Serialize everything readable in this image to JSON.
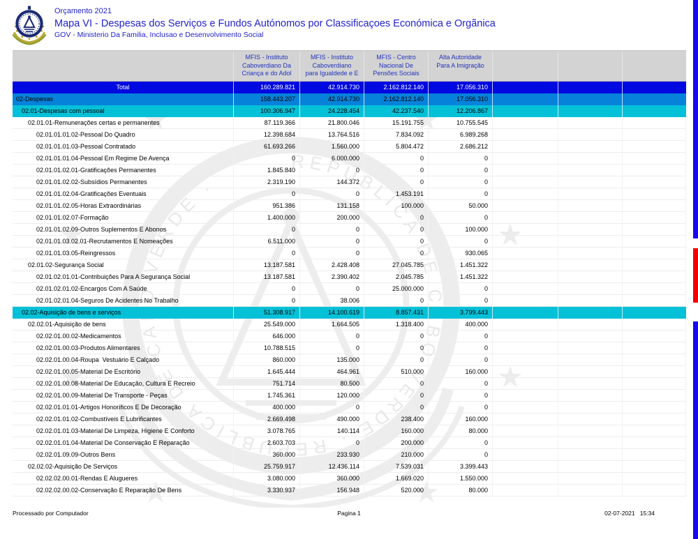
{
  "header": {
    "line_top": "Orçamento 2021",
    "title": "Mapa VI - Despesas dos Serviços e Fundos Autónomos por Classificaçoes Económica e Orgãnica",
    "line_bottom": "GOV - Ministerio Da Familia, Inclusao e Desenvolvimento Social"
  },
  "table": {
    "columns": [
      {
        "lines": []
      },
      {
        "lines": [
          "MFIS - Instituto",
          "Caboverdiano Da",
          "Criança e do Adol"
        ]
      },
      {
        "lines": [
          "MFIS - Instituto",
          "Caboverdiano",
          "para Igualdede e E"
        ]
      },
      {
        "lines": [
          "MFIS - Centro",
          "Nacional De",
          "Pensões Sociais"
        ]
      },
      {
        "lines": [
          "Alta Autoridade",
          "Para A Imigração"
        ]
      },
      {
        "lines": []
      },
      {
        "lines": []
      },
      {
        "lines": []
      }
    ],
    "rows": [
      {
        "label": "Total",
        "type": "total",
        "level": 0,
        "values": [
          "160.289.821",
          "42.914.730",
          "2.162.812.140",
          "17.056.310"
        ]
      },
      {
        "label": "02-Despesas",
        "type": "blue",
        "level": 1,
        "values": [
          "158.443.207",
          "42.914.730",
          "2.162.812.140",
          "17.056.310"
        ]
      },
      {
        "label": "02.01-Despesas com pessoal",
        "type": "cyan",
        "level": 2,
        "values": [
          "100.306.947",
          "24.228.454",
          "42.237.540",
          "12.206.867"
        ]
      },
      {
        "label": "02.01.01-Remunerações certas e permanentes",
        "type": "white",
        "level": 3,
        "values": [
          "87.119.366",
          "21.800.046",
          "15.191.755",
          "10.755.545"
        ]
      },
      {
        "label": "02.01.01.01.02-Pessoal Do Quadro",
        "type": "white",
        "level": 4,
        "values": [
          "12.398.684",
          "13.764.516",
          "7.834.092",
          "6.989.268"
        ]
      },
      {
        "label": "02.01.01.01.03-Pessoal Contratado",
        "type": "white",
        "level": 4,
        "values": [
          "61.693.266",
          "1.560.000",
          "5.804.472",
          "2.686.212"
        ]
      },
      {
        "label": "02.01.01.01.04-Pessoal Em Regime De Avença",
        "type": "white",
        "level": 4,
        "values": [
          "0",
          "6.000.000",
          "0",
          "0"
        ]
      },
      {
        "label": "02.01.01.02.01-Gratificações Permanentes",
        "type": "white",
        "level": 4,
        "values": [
          "1.845.840",
          "0",
          "0",
          "0"
        ]
      },
      {
        "label": "02.01.01.02.02-Subsídios Permanentes",
        "type": "white",
        "level": 4,
        "values": [
          "2.319.190",
          "144.372",
          "0",
          "0"
        ]
      },
      {
        "label": "02.01.01.02.04-Gratificações Eventuais",
        "type": "white",
        "level": 4,
        "values": [
          "0",
          "0",
          "1.453.191",
          "0"
        ]
      },
      {
        "label": "02.01.01.02.05-Horas Extraordinárias",
        "type": "white",
        "level": 4,
        "values": [
          "951.386",
          "131.158",
          "100.000",
          "50.000"
        ]
      },
      {
        "label": "02.01.01.02.07-Formação",
        "type": "white",
        "level": 4,
        "values": [
          "1.400.000",
          "200.000",
          "0",
          "0"
        ]
      },
      {
        "label": "02.01.01.02.09-Outros Suplementos E Abonos",
        "type": "white",
        "level": 4,
        "values": [
          "0",
          "0",
          "0",
          "100.000"
        ]
      },
      {
        "label": "02.01.01.03.02.01-Recrutamentos E Nomeações",
        "type": "white",
        "level": 4,
        "values": [
          "6.511.000",
          "0",
          "0",
          "0"
        ]
      },
      {
        "label": "02.01.01.03.05-Reingressos",
        "type": "white",
        "level": 4,
        "values": [
          "0",
          "0",
          "0",
          "930.065"
        ]
      },
      {
        "label": "02.01.02-Segurança Social",
        "type": "white",
        "level": 3,
        "values": [
          "13.187.581",
          "2.428.408",
          "27.045.785",
          "1.451.322"
        ]
      },
      {
        "label": "02.01.02.01.01-Contribuições Para A Segurança Social",
        "type": "white",
        "level": 4,
        "values": [
          "13.187.581",
          "2.390.402",
          "2.045.785",
          "1.451.322"
        ]
      },
      {
        "label": "02.01.02.01.02-Encargos Com A Saúde",
        "type": "white",
        "level": 4,
        "values": [
          "0",
          "0",
          "25.000.000",
          "0"
        ]
      },
      {
        "label": "02.01.02.01.04-Seguros De Acidentes No Trabalho",
        "type": "white",
        "level": 4,
        "values": [
          "0",
          "38.006",
          "0",
          "0"
        ]
      },
      {
        "label": "02.02-Aquisição de bens e serviços",
        "type": "cyan",
        "level": 2,
        "values": [
          "51.308.917",
          "14.100.619",
          "8.857.431",
          "3.799.443"
        ]
      },
      {
        "label": "02.02.01-Aquisição de bens",
        "type": "white",
        "level": 3,
        "values": [
          "25.549.000",
          "1.664.505",
          "1.318.400",
          "400.000"
        ]
      },
      {
        "label": "02.02.01.00.02-Medicamentos",
        "type": "white",
        "level": 4,
        "values": [
          "646.000",
          "0",
          "0",
          "0"
        ]
      },
      {
        "label": "02.02.01.00.03-Produtos Alimentares",
        "type": "white",
        "level": 4,
        "values": [
          "10.788.515",
          "0",
          "0",
          "0"
        ]
      },
      {
        "label": "02.02.01.00.04-Roupa  Vestuário E Calçado",
        "type": "white",
        "level": 4,
        "values": [
          "860.000",
          "135.000",
          "0",
          "0"
        ]
      },
      {
        "label": "02.02.01.00.05-Material De Escritório",
        "type": "white",
        "level": 4,
        "values": [
          "1.645.444",
          "464.961",
          "510.000",
          "160.000"
        ]
      },
      {
        "label": "02.02.01.00.08-Material De Educação, Cultura E Recreio",
        "type": "white",
        "level": 4,
        "values": [
          "751.714",
          "80.500",
          "0",
          "0"
        ]
      },
      {
        "label": "02.02.01.00.09-Material De Transporte - Peças",
        "type": "white",
        "level": 4,
        "values": [
          "1.745.361",
          "120.000",
          "0",
          "0"
        ]
      },
      {
        "label": "02.02.01.01.01-Artigos Honoríficos E De Decoração",
        "type": "white",
        "level": 4,
        "values": [
          "400.000",
          "0",
          "0",
          "0"
        ]
      },
      {
        "label": "02.02.01.01.02-Combustíveis E Lubrificantes",
        "type": "white",
        "level": 4,
        "values": [
          "2.669.498",
          "490.000",
          "238.400",
          "160.000"
        ]
      },
      {
        "label": "02.02.01.01.03-Material De Limpeza, Higiene E Conforto",
        "type": "white",
        "level": 4,
        "values": [
          "3.078.765",
          "140.114",
          "160.000",
          "80.000"
        ]
      },
      {
        "label": "02.02.01.01.04-Material De Conservação E Reparação",
        "type": "white",
        "level": 4,
        "values": [
          "2.603.703",
          "0",
          "200.000",
          "0"
        ]
      },
      {
        "label": "02.02.01.09.09-Outros Bens",
        "type": "white",
        "level": 4,
        "values": [
          "360.000",
          "233.930",
          "210.000",
          "0"
        ]
      },
      {
        "label": "02.02.02-Aquisição De Serviços",
        "type": "white",
        "level": 3,
        "values": [
          "25.759.917",
          "12.436.114",
          "7.539.031",
          "3.399.443"
        ]
      },
      {
        "label": "02.02.02.00.01-Rendas E Alugueres",
        "type": "white",
        "level": 4,
        "values": [
          "3.080.000",
          "360.000",
          "1.669.020",
          "1.550.000"
        ]
      },
      {
        "label": "02.02.02.00.02-Conservação E Reparação De Bens",
        "type": "white",
        "level": 4,
        "values": [
          "3.330.937",
          "156.948",
          "520.000",
          "80.000"
        ]
      }
    ]
  },
  "footer": {
    "left": "Processado por Computador",
    "center": "Pagina 1",
    "right": "02-07-2021   15:34"
  },
  "colors": {
    "row_total_bg": "#0009e0",
    "row_despesas_bg": "#0782db",
    "row_section_bg": "#04c1d8",
    "header_band_bg": "#d3d3d3",
    "header_text": "#2233bb",
    "title_text": "#2222cc",
    "edge_bar_blue": "#1708ee",
    "edge_bar_red": "#f40000"
  }
}
